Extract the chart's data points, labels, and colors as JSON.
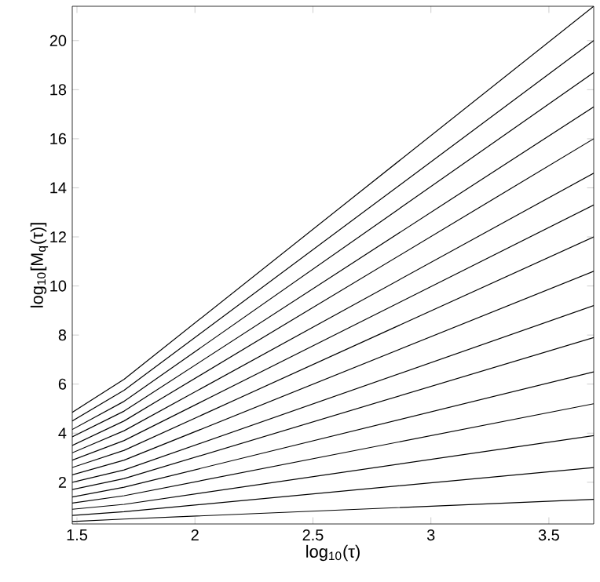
{
  "chart_data": {
    "type": "line",
    "xlabel": "log$_{10}$(τ)",
    "ylabel": "log$_{10}$[M$_{q}$(τ)]",
    "xlim": [
      1.48,
      3.69
    ],
    "ylim": [
      0.3,
      21.4
    ],
    "xticks": [
      1.5,
      2,
      2.5,
      3,
      3.5
    ],
    "yticks": [
      2,
      4,
      6,
      8,
      10,
      12,
      14,
      16,
      18,
      20
    ],
    "grid": false,
    "marker": "none",
    "line_style": "solid",
    "series": [
      {
        "color": "#000000",
        "x": [
          1.48,
          1.7,
          3.69
        ],
        "values": [
          4.85,
          6.2,
          21.4
        ]
      },
      {
        "color": "#000000",
        "x": [
          1.48,
          1.7,
          3.69
        ],
        "values": [
          4.5,
          5.75,
          20.0
        ]
      },
      {
        "color": "#000000",
        "x": [
          1.48,
          1.7,
          3.69
        ],
        "values": [
          4.15,
          5.3,
          18.7
        ]
      },
      {
        "color": "#000000",
        "x": [
          1.48,
          1.7,
          3.69
        ],
        "values": [
          3.85,
          4.9,
          17.3
        ]
      },
      {
        "color": "#000000",
        "x": [
          1.48,
          1.7,
          3.69
        ],
        "values": [
          3.5,
          4.5,
          16.0
        ]
      },
      {
        "color": "#000000",
        "x": [
          1.48,
          1.7,
          3.69
        ],
        "values": [
          3.2,
          4.1,
          14.6
        ]
      },
      {
        "color": "#000000",
        "x": [
          1.48,
          1.7,
          3.69
        ],
        "values": [
          2.9,
          3.7,
          13.3
        ]
      },
      {
        "color": "#000000",
        "x": [
          1.48,
          1.7,
          3.69
        ],
        "values": [
          2.6,
          3.3,
          12.0
        ]
      },
      {
        "color": "#000000",
        "x": [
          1.48,
          1.7,
          3.69
        ],
        "values": [
          2.3,
          2.9,
          10.6
        ]
      },
      {
        "color": "#000000",
        "x": [
          1.48,
          1.7,
          3.69
        ],
        "values": [
          2.0,
          2.5,
          9.2
        ]
      },
      {
        "color": "#000000",
        "x": [
          1.48,
          1.7,
          3.69
        ],
        "values": [
          1.7,
          2.15,
          7.9
        ]
      },
      {
        "color": "#000000",
        "x": [
          1.48,
          1.7,
          3.69
        ],
        "values": [
          1.4,
          1.8,
          6.5
        ]
      },
      {
        "color": "#000000",
        "x": [
          1.48,
          1.7,
          3.69
        ],
        "values": [
          1.15,
          1.45,
          5.2
        ]
      },
      {
        "color": "#000000",
        "x": [
          1.48,
          1.7,
          3.69
        ],
        "values": [
          0.9,
          1.1,
          3.9
        ]
      },
      {
        "color": "#000000",
        "x": [
          1.48,
          1.7,
          3.69
        ],
        "values": [
          0.65,
          0.8,
          2.6
        ]
      },
      {
        "color": "#000000",
        "x": [
          1.48,
          1.7,
          3.69
        ],
        "values": [
          0.4,
          0.5,
          1.3
        ]
      }
    ]
  }
}
